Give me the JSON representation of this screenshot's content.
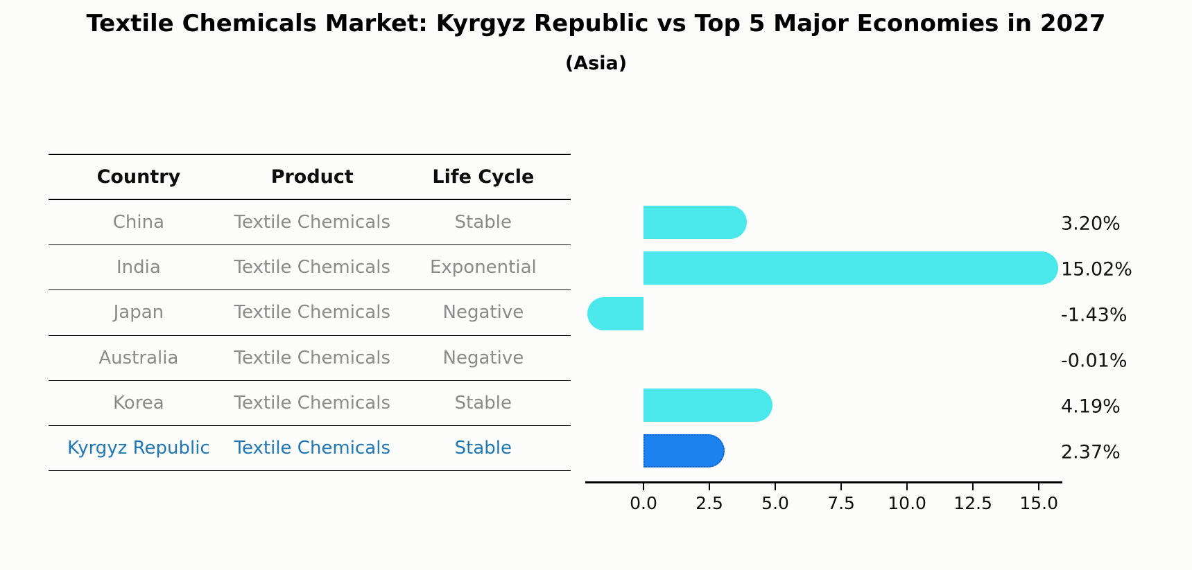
{
  "chart_data": {
    "type": "bar",
    "orientation": "horizontal",
    "title": "Textile Chemicals Market: Kyrgyz Republic vs Top 5 Major Economies in 2027",
    "subtitle": "(Asia)",
    "categories": [
      "China",
      "India",
      "Japan",
      "Australia",
      "Korea",
      "Kyrgyz Republic"
    ],
    "values": [
      3.2,
      15.02,
      -1.43,
      -0.01,
      4.19,
      2.37
    ],
    "value_labels": [
      "3.20%",
      "15.02%",
      "-1.43%",
      "-0.01%",
      "4.19%",
      "2.37%"
    ],
    "x_ticks": [
      "0.0",
      "2.5",
      "5.0",
      "7.5",
      "10.0",
      "12.5",
      "15.0"
    ],
    "x_tick_values": [
      0,
      2.5,
      5,
      7.5,
      10,
      12.5,
      15
    ],
    "xlim": [
      -2.21,
      15.89
    ],
    "grid": false,
    "legend": "none",
    "bar_color": "#4ae8ea",
    "highlight": {
      "index": 5,
      "category": "Kyrgyz Republic",
      "bar_color": "#1c82f0",
      "bar_border_color": "#1160c4",
      "text_color": "#1f77b4"
    }
  },
  "table": {
    "headers": [
      "Country",
      "Product",
      "Life Cycle"
    ],
    "rows": [
      {
        "country": "China",
        "product": "Textile Chemicals",
        "life_cycle": "Stable",
        "highlight": false
      },
      {
        "country": "India",
        "product": "Textile Chemicals",
        "life_cycle": "Exponential",
        "highlight": false
      },
      {
        "country": "Japan",
        "product": "Textile Chemicals",
        "life_cycle": "Negative",
        "highlight": false
      },
      {
        "country": "Australia",
        "product": "Textile Chemicals",
        "life_cycle": "Negative",
        "highlight": false
      },
      {
        "country": "Korea",
        "product": "Textile Chemicals",
        "life_cycle": "Stable",
        "highlight": false
      },
      {
        "country": "Kyrgyz Republic",
        "product": "Textile Chemicals",
        "life_cycle": "Stable",
        "highlight": true
      }
    ]
  }
}
